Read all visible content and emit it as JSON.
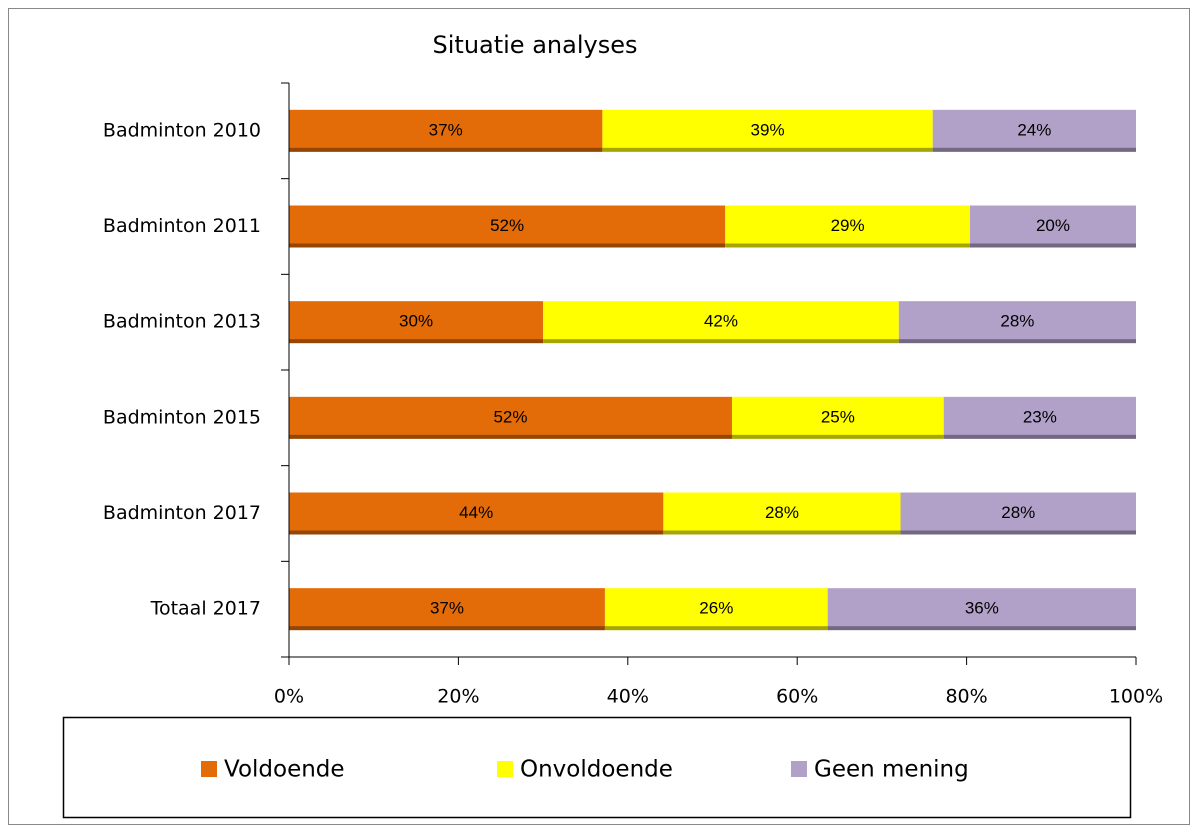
{
  "chart_data": {
    "type": "stacked_bar_horizontal",
    "title": "Situatie analyses",
    "categories": [
      "Badminton 2010",
      "Badminton 2011",
      "Badminton 2013",
      "Badminton 2015",
      "Badminton 2017",
      "Totaal 2017"
    ],
    "series": [
      {
        "name": "Voldoende",
        "color": "#e36c09",
        "values": [
          37,
          51.5,
          30,
          52.3,
          44.2,
          37.3
        ],
        "value_labels": [
          "37%",
          "52%",
          "30%",
          "52%",
          "44%",
          "37%"
        ]
      },
      {
        "name": "Onvoldoende",
        "color": "#ffff00",
        "values": [
          39,
          28.9,
          42,
          25,
          28,
          26.3
        ],
        "value_labels": [
          "39%",
          "29%",
          "42%",
          "25%",
          "28%",
          "26%"
        ]
      },
      {
        "name": "Geen mening",
        "color": "#b1a0c7",
        "values": [
          24,
          19.6,
          28,
          22.7,
          27.8,
          36.4
        ],
        "value_labels": [
          "24%",
          "20%",
          "28%",
          "23%",
          "28%",
          "36%"
        ]
      }
    ],
    "xlim": [
      0,
      100
    ],
    "xticks": [
      {
        "value": 0,
        "label": "0%"
      },
      {
        "value": 20,
        "label": "20%"
      },
      {
        "value": 40,
        "label": "40%"
      },
      {
        "value": 60,
        "label": "60%"
      },
      {
        "value": 80,
        "label": "80%"
      },
      {
        "value": 100,
        "label": "100%"
      }
    ],
    "legend": "bottom"
  }
}
